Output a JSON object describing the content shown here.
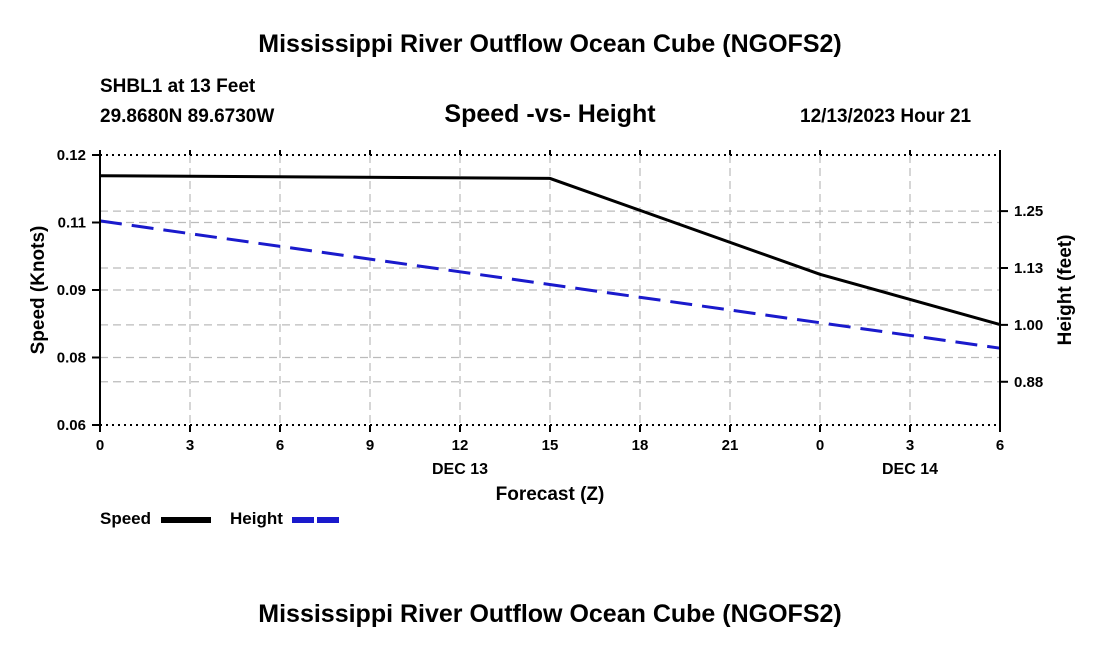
{
  "header": {
    "main_title": "Mississippi River Outflow Ocean Cube (NGOFS2)",
    "station": "SHBL1 at 13 Feet",
    "coordinates": "29.8680N  89.6730W",
    "subtitle": "Speed -vs- Height",
    "datetime": "12/13/2023 Hour 21",
    "bottom_title": "Mississippi River Outflow Ocean Cube (NGOFS2)"
  },
  "legend": {
    "speed_label": "Speed",
    "height_label": "Height"
  },
  "colors": {
    "speed": "#000000",
    "height": "#1a1acc",
    "grid": "#bbbbbb"
  },
  "chart_data": {
    "type": "line",
    "title": "Speed -vs- Height",
    "xlabel": "Forecast (Z)",
    "ylabel": "Speed (Knots)",
    "y2label": "Height (feet)",
    "x_range_hours": [
      0,
      30
    ],
    "x_ticks": [
      {
        "hour": 0,
        "label": "0"
      },
      {
        "hour": 3,
        "label": "3"
      },
      {
        "hour": 6,
        "label": "6"
      },
      {
        "hour": 9,
        "label": "9"
      },
      {
        "hour": 12,
        "label": "12"
      },
      {
        "hour": 15,
        "label": "15"
      },
      {
        "hour": 18,
        "label": "18"
      },
      {
        "hour": 21,
        "label": "21"
      },
      {
        "hour": 24,
        "label": "0"
      },
      {
        "hour": 27,
        "label": "3"
      },
      {
        "hour": 30,
        "label": "6"
      }
    ],
    "date_labels": [
      {
        "hour": 12,
        "label": "DEC 13"
      },
      {
        "hour": 27,
        "label": "DEC 14"
      }
    ],
    "y_left": {
      "range": [
        0.06,
        0.12
      ],
      "tick_values": [
        0.06,
        0.075,
        0.09,
        0.105,
        0.12
      ],
      "tick_labels": [
        "0.06",
        "0.08",
        "0.09",
        "0.11",
        "0.12"
      ]
    },
    "y_right": {
      "range": [
        0.78,
        1.3733
      ],
      "tick_values": [
        0.875,
        1.0,
        1.125,
        1.25
      ],
      "tick_labels": [
        "0.88",
        "1.00",
        "1.13",
        "1.25"
      ]
    },
    "series": [
      {
        "name": "Speed",
        "axis": "left",
        "style": "solid",
        "x": [
          0,
          15,
          24,
          30
        ],
        "values": [
          0.1154,
          0.1148,
          0.0935,
          0.0823
        ]
      },
      {
        "name": "Height",
        "axis": "right",
        "style": "dashed",
        "x": [
          0,
          30
        ],
        "values": [
          1.2284,
          0.9487
        ]
      }
    ],
    "grid": true
  }
}
